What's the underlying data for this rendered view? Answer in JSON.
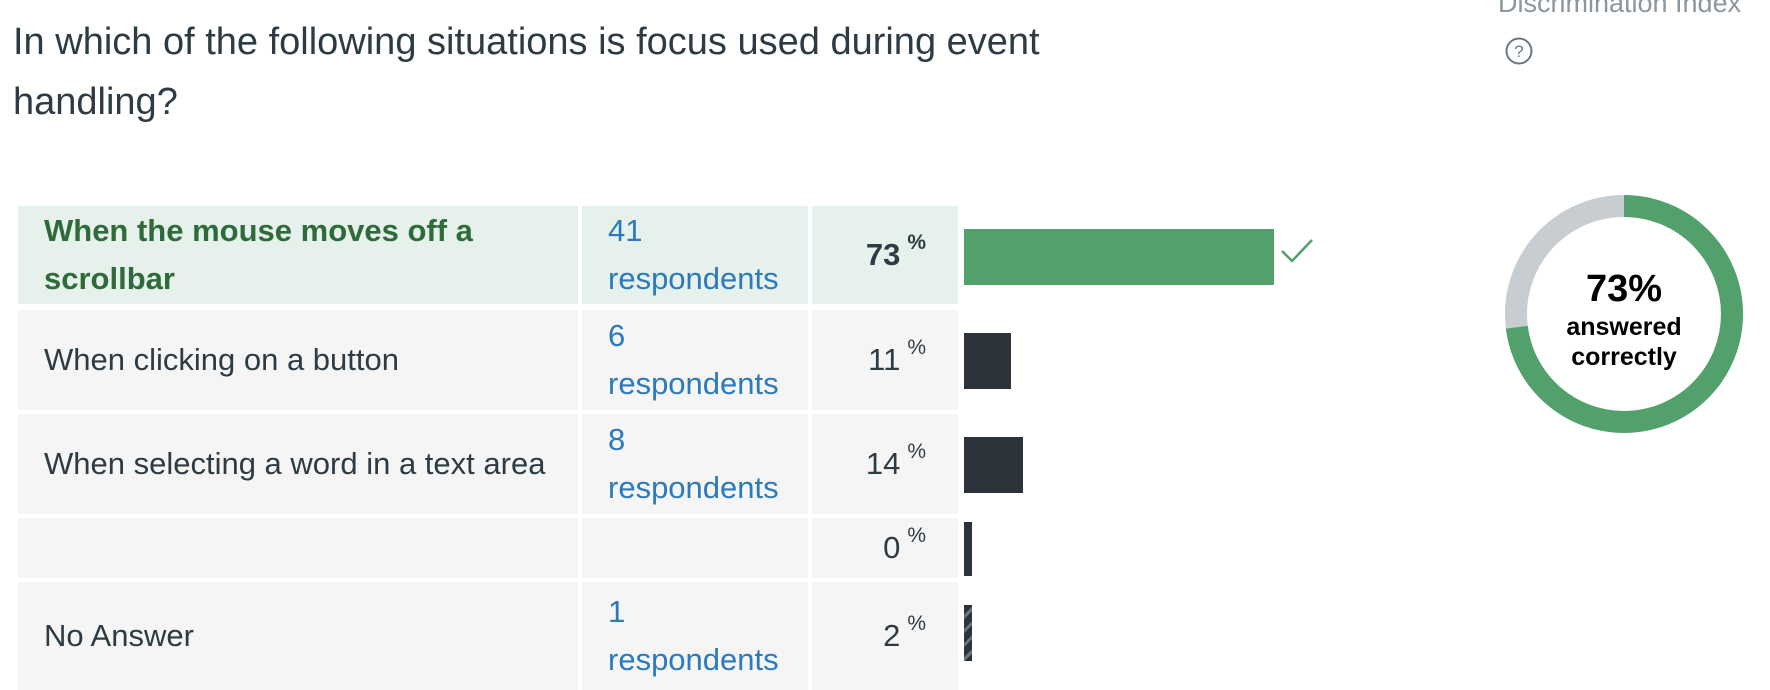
{
  "question": {
    "text": "In which of the following situations is focus used during event handling?"
  },
  "discrimination": {
    "label": "Discrimination Index",
    "help_icon": "question-circle-icon"
  },
  "answers": [
    {
      "text": "When the mouse moves off a scrollbar",
      "respondents": "41 respondents",
      "percent": "73",
      "percent_symbol": "%",
      "bar_fraction": 0.73,
      "correct": true
    },
    {
      "text": "When clicking on a button",
      "respondents": "6 respondents",
      "percent": "11",
      "percent_symbol": "%",
      "bar_fraction": 0.11,
      "correct": false
    },
    {
      "text": "When selecting a word in a text area",
      "respondents": "8 respondents",
      "percent": "14",
      "percent_symbol": "%",
      "bar_fraction": 0.14,
      "correct": false
    },
    {
      "text": "",
      "respondents": "",
      "percent": "0",
      "percent_symbol": "%",
      "bar_fraction": 0.0,
      "correct": false
    },
    {
      "text": "No Answer",
      "respondents": "1 respondents",
      "percent": "2",
      "percent_symbol": "%",
      "bar_fraction": 0.02,
      "correct": false
    }
  ],
  "summary": {
    "percent_label": "73%",
    "line1": "answered",
    "line2": "correctly",
    "fraction_correct": 0.73
  },
  "colors": {
    "correct": "#52a06b",
    "incorrect_bar": "#2d333b",
    "donut_remaining": "#c7cdd1",
    "link": "#2b7abc"
  },
  "icons": {
    "correct_mark": "checkmark-icon"
  }
}
